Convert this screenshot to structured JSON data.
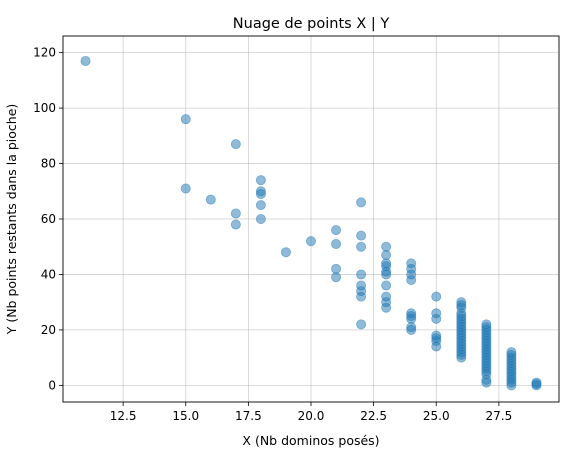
{
  "chart_data": {
    "type": "scatter",
    "title": "Nuage de points X | Y",
    "xlabel": "X (Nb dominos posés)",
    "ylabel": "Y (Nb points restants dans la pioche)",
    "xlim": [
      10.1,
      29.9
    ],
    "ylim": [
      -6,
      126
    ],
    "xticks": [
      12.5,
      15.0,
      17.5,
      20.0,
      22.5,
      25.0,
      27.5
    ],
    "xtick_labels": [
      "12.5",
      "15.0",
      "17.5",
      "20.0",
      "22.5",
      "25.0",
      "27.5"
    ],
    "yticks": [
      0,
      20,
      40,
      60,
      80,
      100,
      120
    ],
    "ytick_labels": [
      "0",
      "20",
      "40",
      "60",
      "80",
      "100",
      "120"
    ],
    "grid": true,
    "marker_color": "#1f77b4",
    "marker_alpha": 0.5,
    "series": [
      {
        "points": [
          [
            11,
            117
          ],
          [
            15,
            96
          ],
          [
            15,
            71
          ],
          [
            16,
            67
          ],
          [
            17,
            87
          ],
          [
            17,
            62
          ],
          [
            17,
            58
          ],
          [
            18,
            74
          ],
          [
            18,
            70
          ],
          [
            18,
            69
          ],
          [
            18,
            65
          ],
          [
            18,
            60
          ],
          [
            19,
            48
          ],
          [
            20,
            52
          ],
          [
            21,
            56
          ],
          [
            21,
            51
          ],
          [
            21,
            42
          ],
          [
            21,
            39
          ],
          [
            22,
            66
          ],
          [
            22,
            54
          ],
          [
            22,
            50
          ],
          [
            22,
            40
          ],
          [
            22,
            36
          ],
          [
            22,
            34
          ],
          [
            22,
            32
          ],
          [
            22,
            22
          ],
          [
            23,
            50
          ],
          [
            23,
            47
          ],
          [
            23,
            44
          ],
          [
            23,
            43
          ],
          [
            23,
            41
          ],
          [
            23,
            40
          ],
          [
            23,
            36
          ],
          [
            23,
            32
          ],
          [
            23,
            30
          ],
          [
            23,
            28
          ],
          [
            24,
            44
          ],
          [
            24,
            42
          ],
          [
            24,
            40
          ],
          [
            24,
            38
          ],
          [
            24,
            26
          ],
          [
            24,
            25
          ],
          [
            24,
            24
          ],
          [
            24,
            21
          ],
          [
            24,
            20
          ],
          [
            25,
            32
          ],
          [
            25,
            26
          ],
          [
            25,
            24
          ],
          [
            25,
            18
          ],
          [
            25,
            17
          ],
          [
            25,
            16
          ],
          [
            25,
            14
          ],
          [
            26,
            30
          ],
          [
            26,
            29
          ],
          [
            26,
            28
          ],
          [
            26,
            26
          ],
          [
            26,
            25
          ],
          [
            26,
            24
          ],
          [
            26,
            23
          ],
          [
            26,
            22
          ],
          [
            26,
            21
          ],
          [
            26,
            20
          ],
          [
            26,
            19
          ],
          [
            26,
            18
          ],
          [
            26,
            17
          ],
          [
            26,
            16
          ],
          [
            26,
            15
          ],
          [
            26,
            14
          ],
          [
            26,
            13
          ],
          [
            26,
            12
          ],
          [
            26,
            11
          ],
          [
            26,
            10
          ],
          [
            27,
            22
          ],
          [
            27,
            21
          ],
          [
            27,
            20
          ],
          [
            27,
            19
          ],
          [
            27,
            18
          ],
          [
            27,
            17
          ],
          [
            27,
            16
          ],
          [
            27,
            15
          ],
          [
            27,
            14
          ],
          [
            27,
            13
          ],
          [
            27,
            12
          ],
          [
            27,
            11
          ],
          [
            27,
            10
          ],
          [
            27,
            9
          ],
          [
            27,
            8
          ],
          [
            27,
            7
          ],
          [
            27,
            6
          ],
          [
            27,
            5
          ],
          [
            27,
            4
          ],
          [
            27,
            2
          ],
          [
            27,
            1
          ],
          [
            28,
            12
          ],
          [
            28,
            11
          ],
          [
            28,
            10
          ],
          [
            28,
            9
          ],
          [
            28,
            8
          ],
          [
            28,
            7
          ],
          [
            28,
            6
          ],
          [
            28,
            5
          ],
          [
            28,
            4
          ],
          [
            28,
            3
          ],
          [
            28,
            2
          ],
          [
            28,
            1
          ],
          [
            28,
            0
          ],
          [
            29,
            1
          ],
          [
            29,
            0.5
          ],
          [
            29,
            0
          ]
        ]
      }
    ]
  }
}
